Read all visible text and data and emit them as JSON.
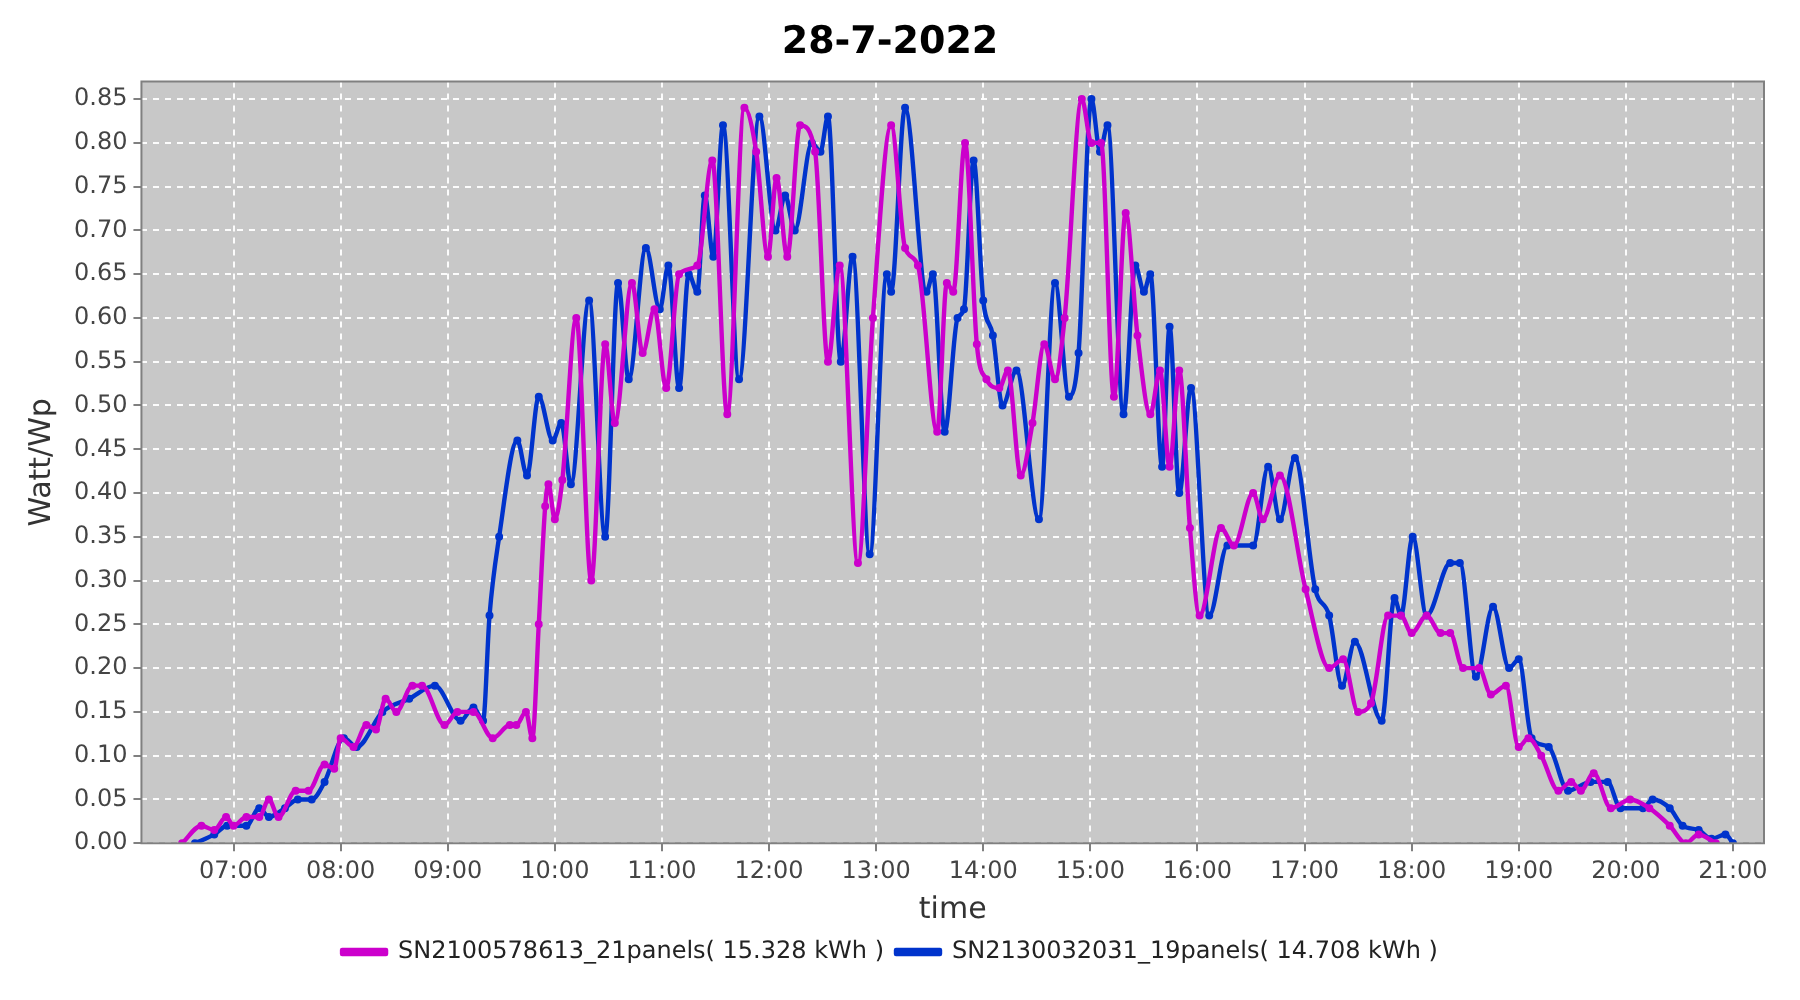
{
  "chart_data": {
    "type": "line",
    "title": "28-7-2022",
    "xlabel": "time",
    "ylabel": "Watt/Wp",
    "xlim": [
      6.14,
      21.29
    ],
    "xticks": [
      {
        "value": 7,
        "label": "07:00"
      },
      {
        "value": 8,
        "label": "08:00"
      },
      {
        "value": 9,
        "label": "09:00"
      },
      {
        "value": 10,
        "label": "10:00"
      },
      {
        "value": 11,
        "label": "11:00"
      },
      {
        "value": 12,
        "label": "12:00"
      },
      {
        "value": 13,
        "label": "13:00"
      },
      {
        "value": 14,
        "label": "14:00"
      },
      {
        "value": 15,
        "label": "15:00"
      },
      {
        "value": 16,
        "label": "16:00"
      },
      {
        "value": 17,
        "label": "17:00"
      },
      {
        "value": 18,
        "label": "18:00"
      },
      {
        "value": 19,
        "label": "19:00"
      },
      {
        "value": 20,
        "label": "20:00"
      },
      {
        "value": 21,
        "label": "21:00"
      }
    ],
    "ylim": [
      0,
      0.87
    ],
    "yticks": [
      {
        "value": 0,
        "label": "0.00"
      },
      {
        "value": 0.05,
        "label": "0.05"
      },
      {
        "value": 0.1,
        "label": "0.10"
      },
      {
        "value": 0.15,
        "label": "0.15"
      },
      {
        "value": 0.2,
        "label": "0.20"
      },
      {
        "value": 0.25,
        "label": "0.25"
      },
      {
        "value": 0.3,
        "label": "0.30"
      },
      {
        "value": 0.35,
        "label": "0.35"
      },
      {
        "value": 0.4,
        "label": "0.40"
      },
      {
        "value": 0.45,
        "label": "0.45"
      },
      {
        "value": 0.5,
        "label": "0.50"
      },
      {
        "value": 0.55,
        "label": "0.55"
      },
      {
        "value": 0.6,
        "label": "0.60"
      },
      {
        "value": 0.65,
        "label": "0.65"
      },
      {
        "value": 0.7,
        "label": "0.70"
      },
      {
        "value": 0.75,
        "label": "0.75"
      },
      {
        "value": 0.8,
        "label": "0.80"
      },
      {
        "value": 0.85,
        "label": "0.85"
      }
    ],
    "grid": true,
    "legend": "bottom",
    "marker": "circle",
    "line_style": "solid",
    "series": [
      {
        "name": "SN2100578613_21panels( 15.328 kWh )",
        "color": "#cc00cc",
        "x": [
          6.52,
          6.7,
          6.82,
          6.93,
          7.0,
          7.12,
          7.24,
          7.33,
          7.42,
          7.58,
          7.7,
          7.85,
          7.94,
          8.0,
          8.12,
          8.24,
          8.33,
          8.42,
          8.52,
          8.67,
          8.76,
          8.97,
          9.09,
          9.24,
          9.42,
          9.58,
          9.64,
          9.73,
          9.79,
          9.85,
          9.91,
          9.94,
          10.0,
          10.07,
          10.2,
          10.34,
          10.47,
          10.56,
          10.72,
          10.82,
          10.93,
          11.04,
          11.16,
          11.33,
          11.47,
          11.61,
          11.77,
          11.88,
          11.99,
          12.07,
          12.17,
          12.29,
          12.43,
          12.55,
          12.66,
          12.83,
          12.97,
          13.14,
          13.27,
          13.39,
          13.57,
          13.66,
          13.72,
          13.83,
          13.94,
          14.03,
          14.15,
          14.23,
          14.35,
          14.46,
          14.57,
          14.67,
          14.76,
          14.92,
          15.01,
          15.1,
          15.22,
          15.33,
          15.44,
          15.56,
          15.65,
          15.74,
          15.83,
          15.93,
          16.02,
          16.22,
          16.34,
          16.52,
          16.61,
          16.77,
          17.01,
          17.23,
          17.36,
          17.5,
          17.62,
          17.78,
          17.9,
          18.0,
          18.14,
          18.27,
          18.36,
          18.48,
          18.63,
          18.74,
          18.88,
          19.0,
          19.09,
          19.21,
          19.37,
          19.49,
          19.58,
          19.7,
          19.86,
          20.04,
          20.22,
          20.41,
          20.56,
          20.68,
          20.84
        ],
        "values": [
          0,
          0.02,
          0.015,
          0.03,
          0.02,
          0.03,
          0.03,
          0.05,
          0.03,
          0.06,
          0.06,
          0.09,
          0.085,
          0.12,
          0.11,
          0.135,
          0.13,
          0.165,
          0.15,
          0.18,
          0.18,
          0.135,
          0.15,
          0.15,
          0.12,
          0.135,
          0.135,
          0.15,
          0.12,
          0.25,
          0.385,
          0.41,
          0.37,
          0.415,
          0.6,
          0.3,
          0.57,
          0.48,
          0.64,
          0.56,
          0.61,
          0.52,
          0.65,
          0.66,
          0.78,
          0.49,
          0.84,
          0.79,
          0.67,
          0.76,
          0.67,
          0.82,
          0.79,
          0.55,
          0.66,
          0.32,
          0.6,
          0.82,
          0.68,
          0.66,
          0.47,
          0.64,
          0.63,
          0.8,
          0.57,
          0.53,
          0.52,
          0.54,
          0.42,
          0.48,
          0.57,
          0.53,
          0.6,
          0.85,
          0.8,
          0.8,
          0.51,
          0.72,
          0.58,
          0.49,
          0.54,
          0.43,
          0.54,
          0.36,
          0.26,
          0.36,
          0.34,
          0.4,
          0.37,
          0.42,
          0.29,
          0.2,
          0.21,
          0.15,
          0.16,
          0.26,
          0.26,
          0.24,
          0.26,
          0.24,
          0.24,
          0.2,
          0.2,
          0.17,
          0.18,
          0.11,
          0.12,
          0.1,
          0.06,
          0.07,
          0.06,
          0.08,
          0.04,
          0.05,
          0.04,
          0.02,
          0,
          0.01,
          0
        ]
      },
      {
        "name": "SN2130032031_19panels( 14.708 kWh )",
        "color": "#0033cc",
        "x": [
          6.64,
          6.82,
          6.94,
          7.12,
          7.24,
          7.33,
          7.48,
          7.6,
          7.73,
          7.85,
          8.03,
          8.15,
          8.39,
          8.64,
          8.88,
          9.12,
          9.24,
          9.33,
          9.39,
          9.48,
          9.65,
          9.74,
          9.85,
          9.98,
          10.06,
          10.15,
          10.32,
          10.47,
          10.59,
          10.69,
          10.85,
          10.98,
          11.06,
          11.16,
          11.25,
          11.33,
          11.4,
          11.48,
          11.57,
          11.72,
          11.91,
          12.06,
          12.15,
          12.24,
          12.4,
          12.48,
          12.55,
          12.67,
          12.78,
          12.94,
          13.1,
          13.14,
          13.27,
          13.47,
          13.53,
          13.64,
          13.76,
          13.82,
          13.91,
          14.0,
          14.09,
          14.18,
          14.31,
          14.52,
          14.67,
          14.8,
          14.89,
          15.01,
          15.09,
          15.16,
          15.31,
          15.42,
          15.5,
          15.56,
          15.67,
          15.74,
          15.83,
          15.94,
          16.11,
          16.28,
          16.52,
          16.66,
          16.77,
          16.91,
          17.1,
          17.23,
          17.35,
          17.47,
          17.72,
          17.84,
          17.9,
          18.01,
          18.14,
          18.36,
          18.45,
          18.6,
          18.76,
          18.91,
          19.0,
          19.12,
          19.28,
          19.46,
          19.67,
          19.83,
          19.95,
          20.16,
          20.25,
          20.41,
          20.53,
          20.68,
          20.8,
          20.93,
          21.0
        ],
        "values": [
          0,
          0.01,
          0.02,
          0.02,
          0.04,
          0.03,
          0.04,
          0.05,
          0.05,
          0.07,
          0.12,
          0.11,
          0.15,
          0.165,
          0.18,
          0.14,
          0.155,
          0.14,
          0.26,
          0.35,
          0.46,
          0.42,
          0.51,
          0.46,
          0.48,
          0.41,
          0.62,
          0.35,
          0.64,
          0.53,
          0.68,
          0.61,
          0.66,
          0.52,
          0.65,
          0.63,
          0.74,
          0.67,
          0.82,
          0.53,
          0.83,
          0.7,
          0.74,
          0.7,
          0.8,
          0.79,
          0.83,
          0.55,
          0.67,
          0.33,
          0.65,
          0.63,
          0.84,
          0.63,
          0.65,
          0.47,
          0.6,
          0.61,
          0.78,
          0.62,
          0.58,
          0.5,
          0.54,
          0.37,
          0.64,
          0.51,
          0.56,
          0.85,
          0.79,
          0.82,
          0.49,
          0.66,
          0.63,
          0.65,
          0.43,
          0.59,
          0.4,
          0.52,
          0.26,
          0.34,
          0.34,
          0.43,
          0.37,
          0.44,
          0.29,
          0.26,
          0.18,
          0.23,
          0.14,
          0.28,
          0.26,
          0.35,
          0.26,
          0.32,
          0.32,
          0.19,
          0.27,
          0.2,
          0.21,
          0.12,
          0.11,
          0.06,
          0.07,
          0.07,
          0.04,
          0.04,
          0.05,
          0.04,
          0.02,
          0.015,
          0.005,
          0.01,
          0
        ]
      }
    ]
  }
}
